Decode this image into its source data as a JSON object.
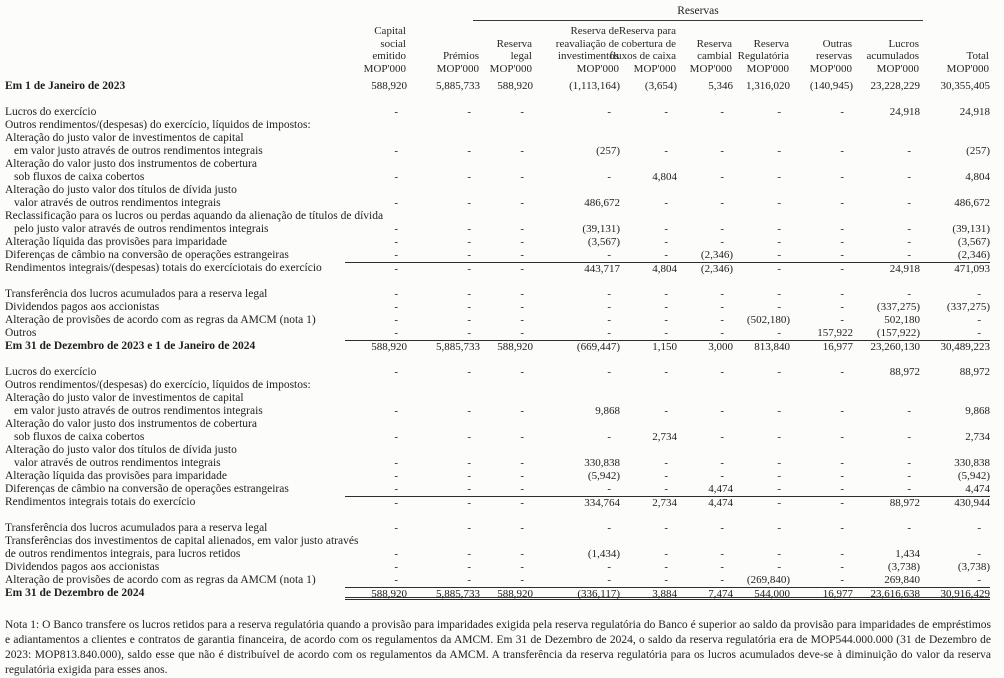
{
  "document": {
    "group_header": "Reservas",
    "columns": [
      {
        "id": "capital",
        "header": "Capital\nsocial\nemitido\nMOP'000"
      },
      {
        "id": "premios",
        "header": "Prémios\nMOP'000"
      },
      {
        "id": "legal",
        "header": "Reserva\nlegal\nMOP'000"
      },
      {
        "id": "reavaliacao",
        "header": "Reserva de\nreavaliação de\ninvestimentos\nMOP'000"
      },
      {
        "id": "cobertura",
        "header": "Reserva para\ncobertura de\nfluxos de caixa\nMOP'000"
      },
      {
        "id": "cambial",
        "header": "Reserva\ncambial\nMOP'000"
      },
      {
        "id": "regulatoria",
        "header": "Reserva\nRegulatória\nMOP'000"
      },
      {
        "id": "outras",
        "header": "Outras\nreservas\nMOP'000"
      },
      {
        "id": "lucros",
        "header": "Lucros\nacumulados\nMOP'000"
      },
      {
        "id": "total",
        "header": "Total\nMOP'000"
      }
    ],
    "rows": [
      {
        "label": "Em 1 de Janeiro de 2023",
        "bold": true,
        "values": [
          "588,920",
          "5,885,733",
          "588,920",
          "(1,113,164)",
          "(3,654)",
          "5,346",
          "1,316,020",
          "(140,945)",
          "23,228,229",
          "30,355,405"
        ]
      },
      {
        "blank": true
      },
      {
        "label": "Lucros do exercício",
        "values": [
          "-",
          "-",
          "-",
          "-",
          "-",
          "-",
          "-",
          "-",
          "24,918",
          "24,918"
        ]
      },
      {
        "label": "Outros rendimentos/(despesas) do exercício, líquidos de impostos:",
        "values": []
      },
      {
        "label": "Alteração do justo valor de investimentos de capital",
        "values": []
      },
      {
        "label": "em valor justo através de outros rendimentos integrais",
        "indent": true,
        "values": [
          "-",
          "-",
          "-",
          "(257)",
          "-",
          "-",
          "-",
          "-",
          "-",
          "(257)"
        ]
      },
      {
        "label": "Alteração do valor justo dos instrumentos de cobertura",
        "values": []
      },
      {
        "label": "sob fluxos de caixa cobertos",
        "indent": true,
        "values": [
          "-",
          "-",
          "-",
          "-",
          "4,804",
          "-",
          "-",
          "-",
          "-",
          "4,804"
        ]
      },
      {
        "label": "Alteração do justo valor dos títulos de dívida justo",
        "values": []
      },
      {
        "label": "valor através de outros rendimentos integrais",
        "indent": true,
        "values": [
          "-",
          "-",
          "-",
          "486,672",
          "-",
          "-",
          "-",
          "-",
          "-",
          "486,672"
        ]
      },
      {
        "label": "Reclassificação para os lucros ou perdas aquando da alienação de títulos de dívida",
        "values": []
      },
      {
        "label": "pelo justo valor através de outros rendimentos integrais",
        "indent": true,
        "values": [
          "-",
          "-",
          "-",
          "(39,131)",
          "-",
          "-",
          "-",
          "-",
          "-",
          "(39,131)"
        ]
      },
      {
        "label": "Alteração líquida das provisões para imparidade",
        "values": [
          "-",
          "-",
          "-",
          "(3,567)",
          "-",
          "-",
          "-",
          "-",
          "-",
          "(3,567)"
        ]
      },
      {
        "label": "Diferenças de câmbio na conversão de operações estrangeiras",
        "values": [
          "-",
          "-",
          "-",
          "-",
          "-",
          "(2,346)",
          "-",
          "-",
          "-",
          "(2,346)"
        ]
      },
      {
        "label": "Rendimentos integrais/(despesas) totais do exercíciotais do exercício",
        "rule_above": true,
        "values": [
          "-",
          "-",
          "-",
          "443,717",
          "4,804",
          "(2,346)",
          "-",
          "-",
          "24,918",
          "471,093"
        ]
      },
      {
        "blank": true
      },
      {
        "label": "Transferência dos lucros acumulados para a reserva legal",
        "values": [
          "-",
          "-",
          "-",
          "-",
          "-",
          "-",
          "-",
          "-",
          "-",
          "-"
        ]
      },
      {
        "label": "Dividendos pagos aos accionistas",
        "values": [
          "-",
          "-",
          "-",
          "-",
          "-",
          "-",
          "-",
          "-",
          "(337,275)",
          "(337,275)"
        ]
      },
      {
        "label": "Alteração de provisões de acordo com as regras da AMCM (nota 1)",
        "values": [
          "-",
          "-",
          "-",
          "-",
          "-",
          "-",
          "(502,180)",
          "-",
          "502,180",
          "-"
        ]
      },
      {
        "label": "Outros",
        "values": [
          "-",
          "-",
          "-",
          "-",
          "-",
          "-",
          "-",
          "157,922",
          "(157,922)",
          "-"
        ]
      },
      {
        "label": "Em 31 de Dezembro de 2023 e 1 de Janeiro de 2024",
        "bold": true,
        "rule_above": true,
        "values": [
          "588,920",
          "5,885,733",
          "588,920",
          "(669,447)",
          "1,150",
          "3,000",
          "813,840",
          "16,977",
          "23,260,130",
          "30,489,223"
        ]
      },
      {
        "blank": true
      },
      {
        "label": "Lucros do exercício",
        "values": [
          "-",
          "-",
          "-",
          "-",
          "-",
          "-",
          "-",
          "-",
          "88,972",
          "88,972"
        ]
      },
      {
        "label": "Outros rendimentos/(despesas) do exercício, líquidos de impostos:",
        "values": []
      },
      {
        "label": "Alteração do justo valor de investimentos de capital",
        "values": []
      },
      {
        "label": "em valor justo através de outros rendimentos integrais",
        "indent": true,
        "values": [
          "-",
          "-",
          "-",
          "9,868",
          "-",
          "-",
          "-",
          "-",
          "-",
          "9,868"
        ]
      },
      {
        "label": "Alteração do valor justo dos instrumentos de cobertura",
        "values": []
      },
      {
        "label": "sob fluxos de caixa cobertos",
        "indent": true,
        "values": [
          "-",
          "-",
          "-",
          "-",
          "2,734",
          "-",
          "-",
          "-",
          "-",
          "2,734"
        ]
      },
      {
        "label": "Alteração do justo valor dos títulos de dívida justo",
        "values": []
      },
      {
        "label": "valor através de outros rendimentos integrais",
        "indent": true,
        "values": [
          "-",
          "-",
          "-",
          "330,838",
          "-",
          "-",
          "-",
          "-",
          "-",
          "330,838"
        ]
      },
      {
        "label": "Alteração líquida das provisões para imparidade",
        "values": [
          "-",
          "-",
          "-",
          "(5,942)",
          "-",
          "-",
          "-",
          "-",
          "-",
          "(5,942)"
        ]
      },
      {
        "label": "Diferenças de câmbio na conversão de operações estrangeiras",
        "values": [
          "-",
          "-",
          "-",
          "-",
          "-",
          "4,474",
          "-",
          "-",
          "-",
          "4,474"
        ]
      },
      {
        "label": "Rendimentos integrais totais do exercício",
        "rule_above": true,
        "values": [
          "-",
          "-",
          "-",
          "334,764",
          "2,734",
          "4,474",
          "-",
          "-",
          "88,972",
          "430,944"
        ]
      },
      {
        "blank": true
      },
      {
        "label": "Transferência dos lucros acumulados para a reserva legal",
        "values": [
          "-",
          "-",
          "-",
          "-",
          "-",
          "-",
          "-",
          "-",
          "-",
          "-"
        ]
      },
      {
        "label": "Transferências dos investimentos de capital alienados,  em valor justo através",
        "values": []
      },
      {
        "label": "de outros rendimentos integrais, para lucros retidos",
        "values": [
          "-",
          "-",
          "-",
          "(1,434)",
          "-",
          "-",
          "-",
          "-",
          "1,434",
          "-"
        ]
      },
      {
        "label": "Dividendos pagos aos accionistas",
        "values": [
          "-",
          "-",
          "-",
          "-",
          "-",
          "-",
          "-",
          "-",
          "(3,738)",
          "(3,738)"
        ]
      },
      {
        "label": "Alteração de provisões de acordo com as regras da AMCM (nota 1)",
        "values": [
          "-",
          "-",
          "-",
          "-",
          "-",
          "-",
          "(269,840)",
          "-",
          "269,840",
          "-"
        ]
      },
      {
        "label": "Em 31 de Dezembro de 2024",
        "bold": true,
        "rule_above": true,
        "double_below": true,
        "values": [
          "588,920",
          "5,885,733",
          "588,920",
          "(336,117)",
          "3,884",
          "7,474",
          "544,000",
          "16,977",
          "23,616,638",
          "30,916,429"
        ]
      }
    ],
    "footnote": "Nota 1: O Banco transfere os lucros retidos para a reserva regulatória quando a provisão para imparidades exigida pela reserva regulatória do Banco é superior ao saldo da provisão para imparidades de empréstimos e adiantamentos a clientes e contratos de garantia financeira, de acordo com os regulamentos da AMCM. Em 31 de Dezembro de 2024, o saldo da reserva regulatória era de MOP544.000.000 (31 de Dezembro de 2023: MOP813.840.000), saldo esse que não é distribuível de acordo com os regulamentos da AMCM. A transferência da reserva regulatória para os lucros acumulados deve-se à diminuição do valor da reserva regulatória exigida para esses anos."
  }
}
